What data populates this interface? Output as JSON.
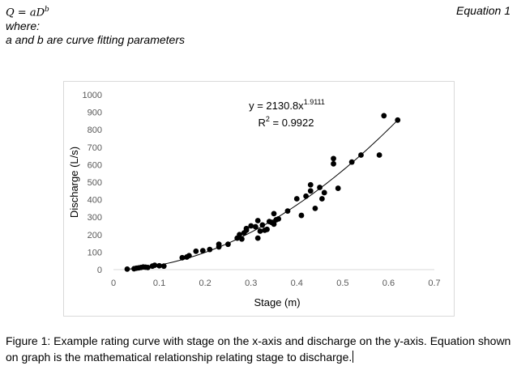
{
  "equation_block": {
    "formula_q": "Q",
    "formula_eq": " = ",
    "formula_a": "aD",
    "formula_b": "b",
    "where": "where:",
    "params": "a and b are curve fitting parameters",
    "label": "Equation 1"
  },
  "caption": {
    "text": "Figure 1: Example rating curve with stage on the x-axis and discharge on the y-axis. Equation shown on graph is the mathematical relationship relating stage to discharge."
  },
  "chart_data": {
    "type": "scatter",
    "title": "",
    "xlabel": "Stage (m)",
    "ylabel": "Discharge (L/s)",
    "xlim": [
      0,
      0.7
    ],
    "ylim": [
      0,
      1000
    ],
    "x_ticks": [
      0,
      0.1,
      0.2,
      0.3,
      0.4,
      0.5,
      0.6,
      0.7
    ],
    "x_tick_labels": [
      "0",
      "0.1",
      "0.2",
      "0.3",
      "0.4",
      "0.5",
      "0.6",
      "0.7"
    ],
    "y_ticks": [
      0,
      100,
      200,
      300,
      400,
      500,
      600,
      700,
      800,
      900,
      1000
    ],
    "y_tick_labels": [
      "0",
      "100",
      "200",
      "300",
      "400",
      "500",
      "600",
      "700",
      "800",
      "900",
      "1000"
    ],
    "grid": false,
    "legend": "none",
    "point_color": "#000000",
    "trendline": {
      "type": "power",
      "a": 2130.8,
      "b": 1.9111,
      "x_range": [
        0.03,
        0.62
      ],
      "equation_label": "y = 2130.8x",
      "equation_exponent": "1.9111",
      "r2_label": "R",
      "r2_sup": "2",
      "r2_value": " = 0.9922"
    },
    "points": [
      [
        0.03,
        3
      ],
      [
        0.045,
        5
      ],
      [
        0.05,
        8
      ],
      [
        0.055,
        10
      ],
      [
        0.06,
        12
      ],
      [
        0.065,
        15
      ],
      [
        0.07,
        14
      ],
      [
        0.075,
        12
      ],
      [
        0.085,
        20
      ],
      [
        0.09,
        25
      ],
      [
        0.1,
        22
      ],
      [
        0.11,
        20
      ],
      [
        0.15,
        68
      ],
      [
        0.16,
        72
      ],
      [
        0.165,
        80
      ],
      [
        0.18,
        105
      ],
      [
        0.195,
        108
      ],
      [
        0.21,
        115
      ],
      [
        0.23,
        130
      ],
      [
        0.23,
        145
      ],
      [
        0.25,
        145
      ],
      [
        0.27,
        180
      ],
      [
        0.275,
        200
      ],
      [
        0.28,
        175
      ],
      [
        0.285,
        210
      ],
      [
        0.29,
        235
      ],
      [
        0.29,
        225
      ],
      [
        0.3,
        250
      ],
      [
        0.31,
        245
      ],
      [
        0.315,
        280
      ],
      [
        0.315,
        180
      ],
      [
        0.32,
        220
      ],
      [
        0.325,
        255
      ],
      [
        0.33,
        225
      ],
      [
        0.335,
        230
      ],
      [
        0.34,
        275
      ],
      [
        0.345,
        270
      ],
      [
        0.35,
        320
      ],
      [
        0.35,
        260
      ],
      [
        0.355,
        285
      ],
      [
        0.36,
        290
      ],
      [
        0.38,
        335
      ],
      [
        0.4,
        405
      ],
      [
        0.41,
        310
      ],
      [
        0.42,
        420
      ],
      [
        0.43,
        450
      ],
      [
        0.43,
        485
      ],
      [
        0.44,
        350
      ],
      [
        0.45,
        470
      ],
      [
        0.455,
        405
      ],
      [
        0.46,
        440
      ],
      [
        0.48,
        635
      ],
      [
        0.48,
        605
      ],
      [
        0.49,
        465
      ],
      [
        0.52,
        615
      ],
      [
        0.54,
        655
      ],
      [
        0.58,
        655
      ],
      [
        0.59,
        880
      ],
      [
        0.62,
        855
      ]
    ]
  }
}
